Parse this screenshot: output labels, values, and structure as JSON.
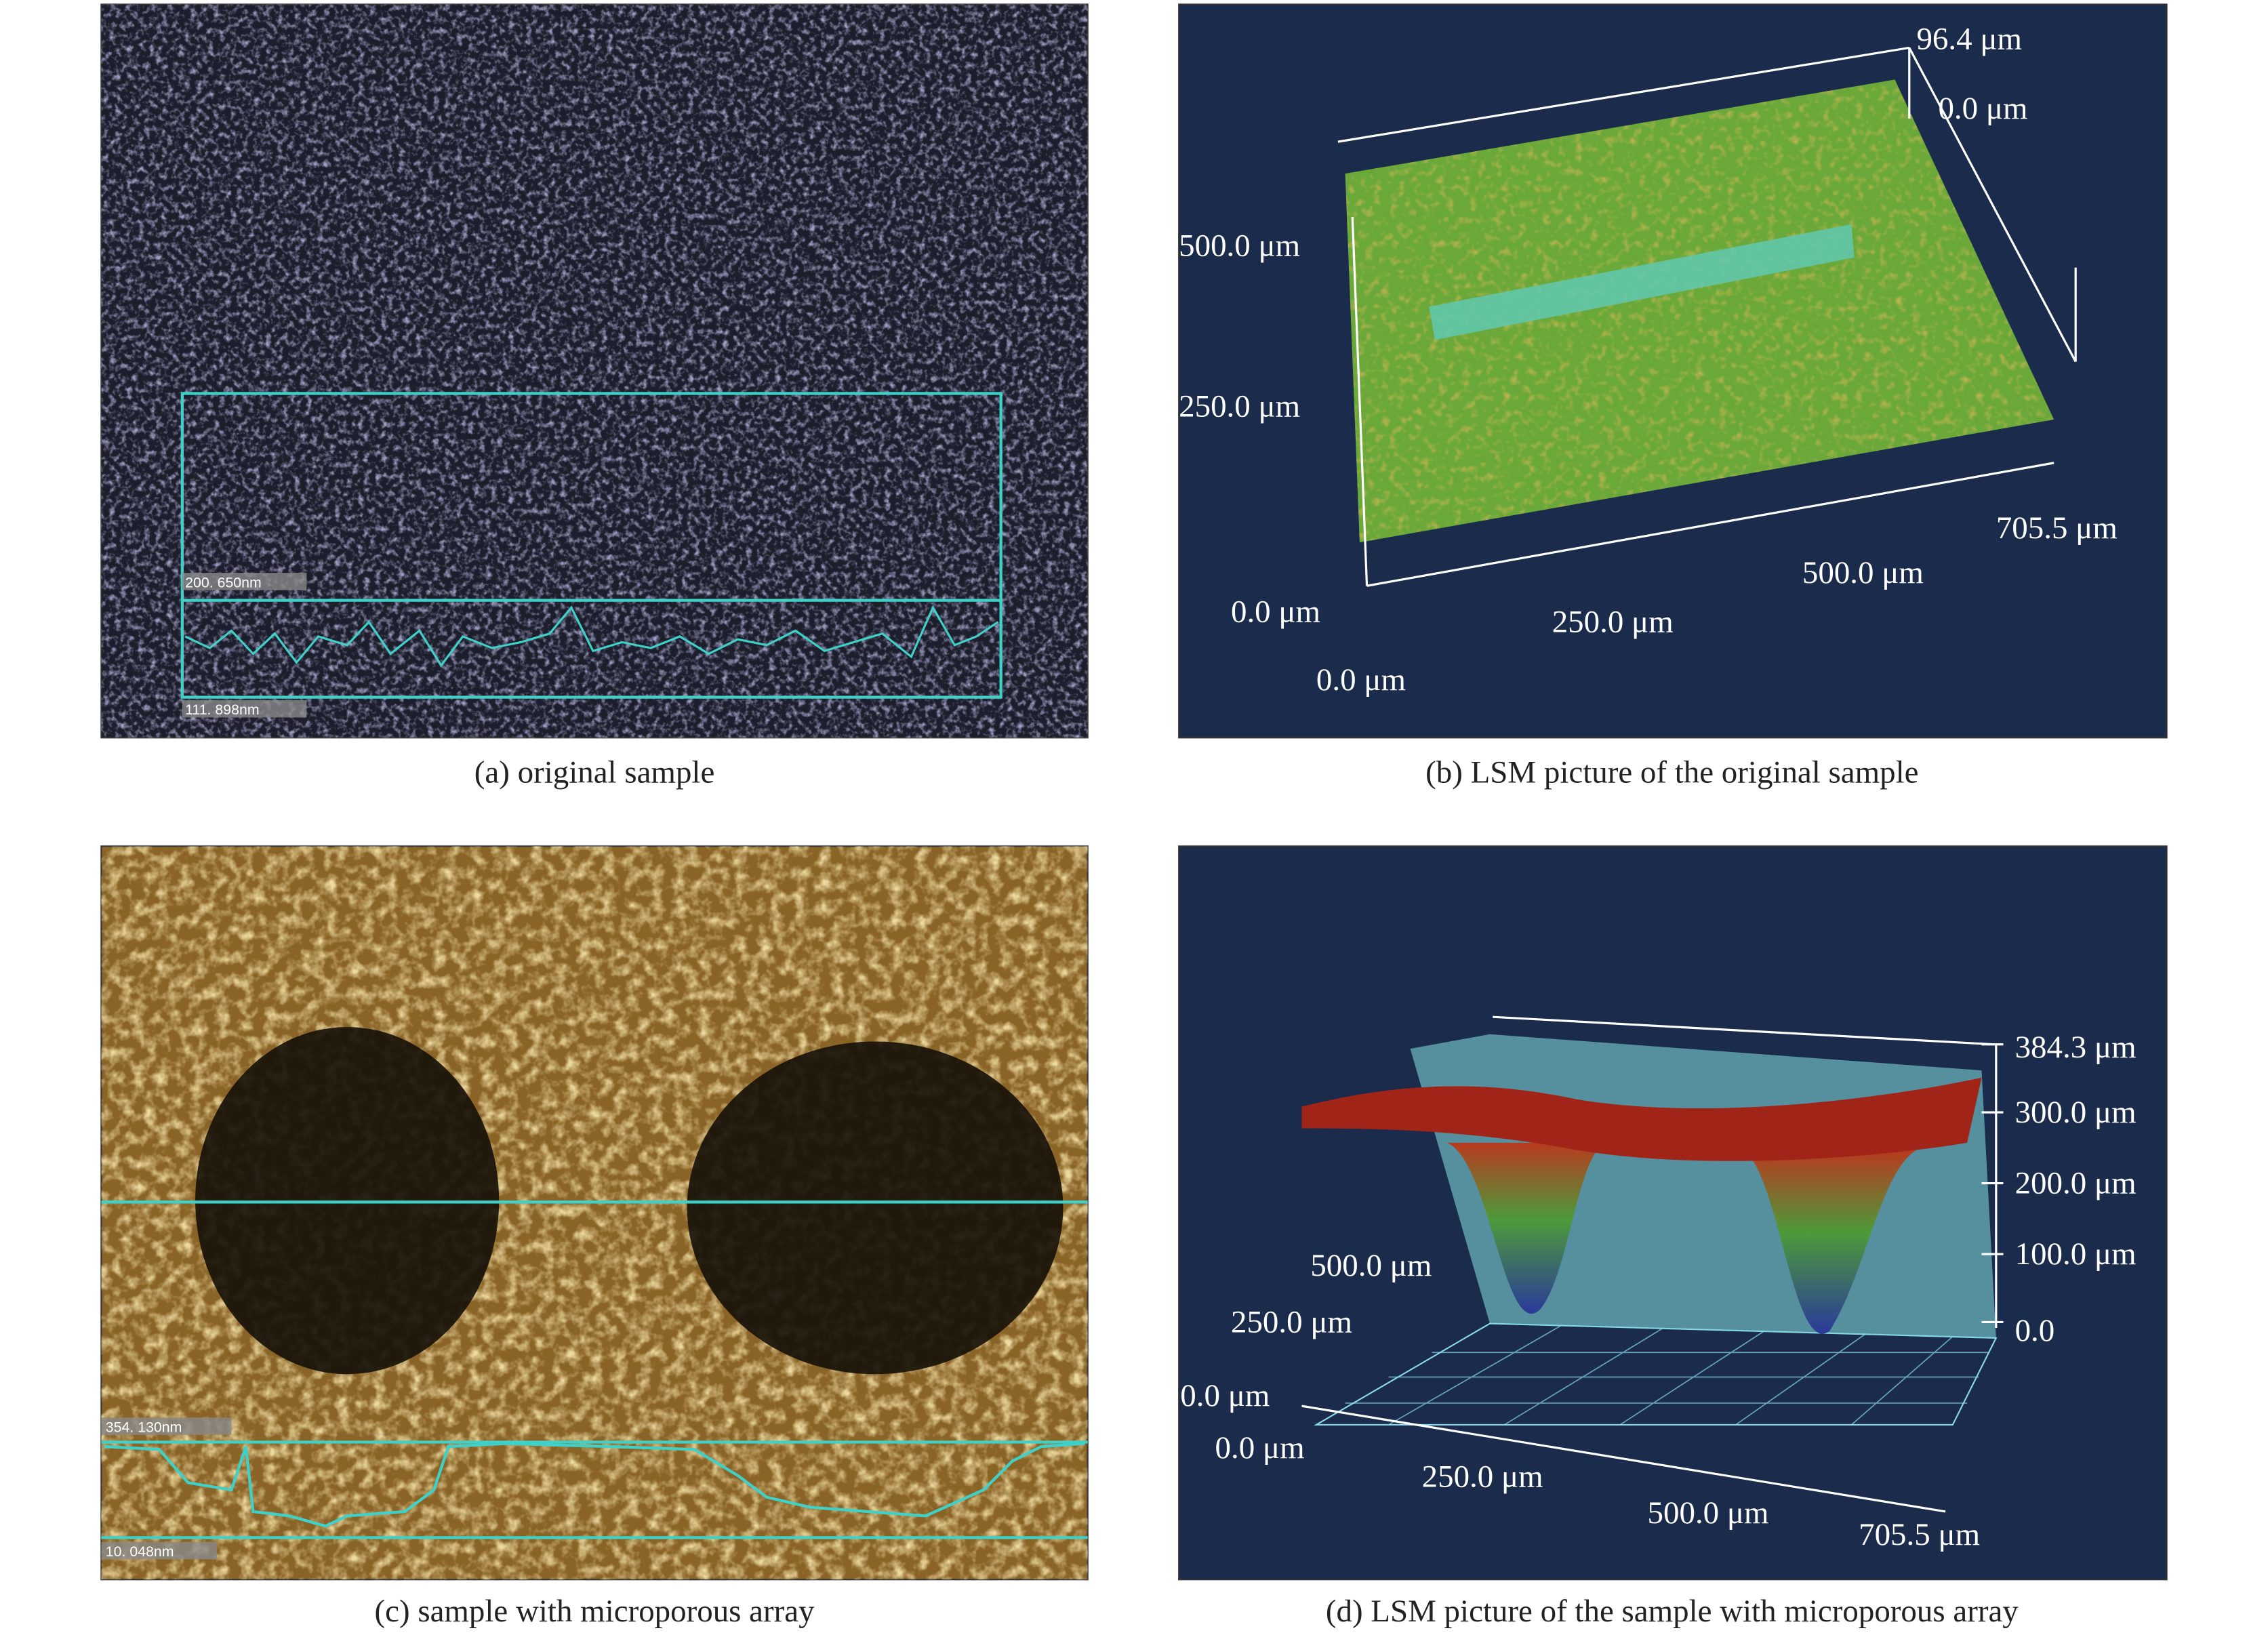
{
  "panels": [
    {
      "caption": "(a) original sample",
      "labels": [
        "200. 650nm",
        "111. 898nm"
      ]
    },
    {
      "caption": "(b) LSM picture of the original sample",
      "labels": [
        "96.4 μm",
        "0.0 μm",
        "500.0 μm",
        "250.0 μm",
        "0.0 μm",
        "250.0 μm",
        "500.0 μm",
        "705.5 μm",
        "0.0 μm"
      ]
    },
    {
      "caption": "(c) sample with microporous array",
      "labels": [
        "354. 130nm",
        "10. 048nm"
      ]
    },
    {
      "caption": "(d) LSM picture of the sample with microporous array",
      "labels": [
        "384.3 μm",
        "300.0 μm",
        "200.0 μm",
        "100.0 μm",
        "0.0",
        "500.0 μm",
        "250.0 μm",
        "0.0 μm",
        "0.0 μm",
        "250.0 μm",
        "500.0 μm",
        "705.5 μm"
      ]
    }
  ]
}
